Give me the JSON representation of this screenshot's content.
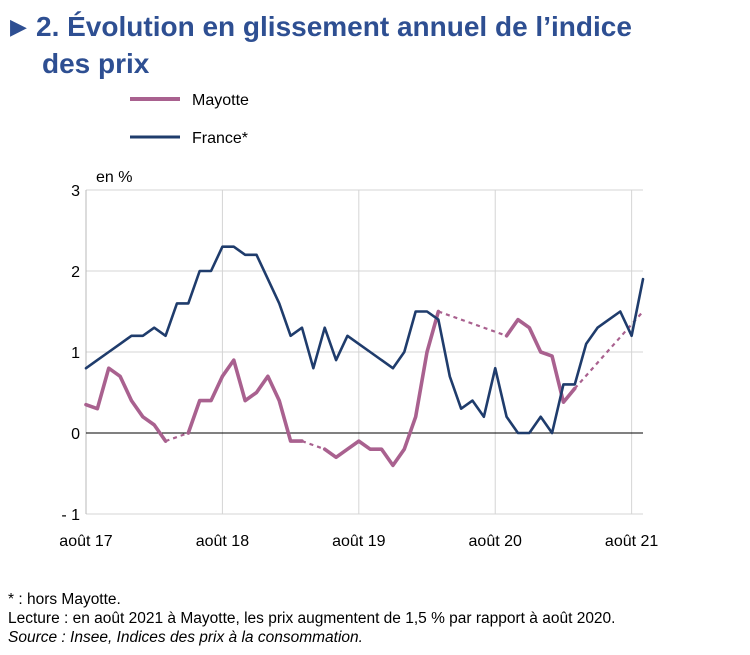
{
  "title": {
    "marker": "▶",
    "line1": "2. Évolution en glissement annuel de l’indice",
    "line2": "des prix"
  },
  "chart_data": {
    "type": "line",
    "ylabel": "en %",
    "ylim": [
      -1,
      3
    ],
    "yticks": [
      3,
      2,
      1,
      0,
      -1
    ],
    "ytick_labels": [
      "3",
      "2",
      "1",
      "0",
      "- 1"
    ],
    "xticks": [
      "août 17",
      "août 18",
      "août 19",
      "août 20",
      "août 21"
    ],
    "x_start": "2017-08",
    "grid": "vertical and horizontal",
    "legend_placement": "top-left",
    "series": [
      {
        "name": "Mayotte",
        "color": "#a9618f",
        "values": [
          0.35,
          0.3,
          0.8,
          0.7,
          0.4,
          0.2,
          0.1,
          -0.1,
          null,
          0.0,
          0.4,
          0.4,
          0.7,
          0.9,
          0.4,
          0.5,
          0.7,
          0.4,
          -0.1,
          -0.1,
          null,
          -0.2,
          -0.3,
          -0.2,
          -0.1,
          -0.2,
          -0.2,
          -0.4,
          -0.2,
          0.2,
          1.0,
          1.5,
          null,
          null,
          null,
          null,
          null,
          1.2,
          1.4,
          1.3,
          1.0,
          0.95,
          0.38,
          0.55,
          null,
          null,
          null,
          null,
          null,
          1.5
        ]
      },
      {
        "name": "France*",
        "color": "#1f3c6c",
        "values": [
          0.8,
          0.9,
          1.0,
          1.1,
          1.2,
          1.2,
          1.3,
          1.2,
          1.6,
          1.6,
          2.0,
          2.0,
          2.3,
          2.3,
          2.2,
          2.2,
          1.9,
          1.6,
          1.2,
          1.3,
          0.8,
          1.3,
          0.9,
          1.2,
          1.1,
          1.0,
          0.9,
          0.8,
          1.0,
          1.5,
          1.5,
          1.4,
          0.7,
          0.3,
          0.4,
          0.2,
          0.8,
          0.2,
          0.0,
          0.0,
          0.2,
          0.0,
          0.6,
          0.6,
          1.1,
          1.3,
          1.4,
          1.5,
          1.2,
          1.9
        ]
      }
    ]
  },
  "footnotes": {
    "star": "* : hors Mayotte.",
    "reading": "Lecture : en août 2021 à Mayotte, les prix augmentent de 1,5 % par rapport à août 2020.",
    "source": "Source : Insee, Indices des prix à la consommation."
  }
}
